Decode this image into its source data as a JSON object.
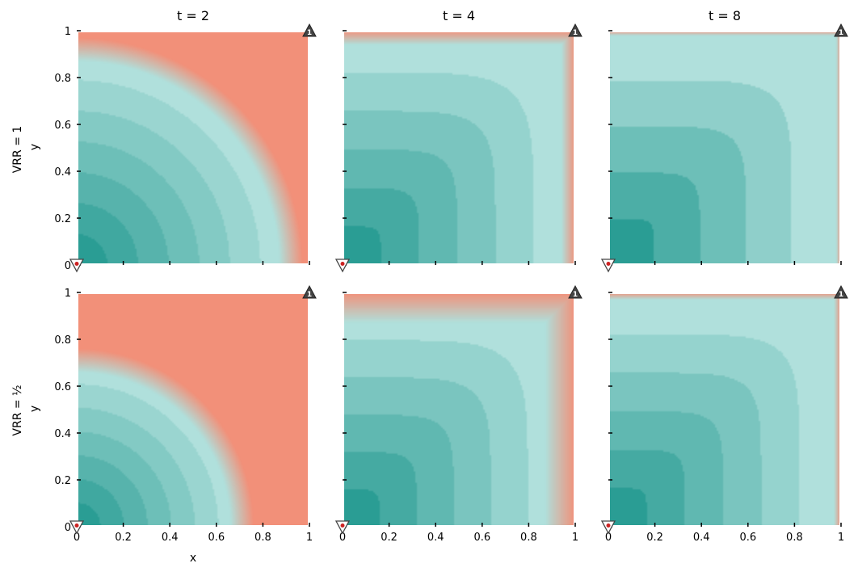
{
  "chart_data": {
    "type": "heatmap",
    "grid": false,
    "colors": {
      "teal_dark": "#2a9d94",
      "teal_light": "#b0e0dc",
      "salmon": "#f29079",
      "marker_dark": "#444444",
      "marker_red": "#cc2222"
    },
    "columns": [
      {
        "title": "t = 2",
        "t": 2
      },
      {
        "title": "t = 4",
        "t": 4
      },
      {
        "title": "t = 8",
        "t": 8
      }
    ],
    "rows": [
      {
        "label": "VRR = 1",
        "vrr": 1
      },
      {
        "label": "VRR = ½",
        "vrr": 0.5
      }
    ],
    "xlabel": "x",
    "ylabel": "y",
    "xlim": [
      0,
      1
    ],
    "ylim": [
      0,
      1
    ],
    "xticks": [
      "0",
      "0.2",
      "0.4",
      "0.6",
      "0.8",
      "1"
    ],
    "yticks": [
      "0",
      "0.2",
      "0.4",
      "0.6",
      "0.8",
      "1"
    ],
    "markers": [
      {
        "label": "0",
        "x": 0,
        "y": 0,
        "shape": "triangle-down"
      },
      {
        "label": "1",
        "x": 1,
        "y": 1,
        "shape": "triangle-up"
      }
    ],
    "panels": [
      {
        "row": 0,
        "col": 0,
        "model": "quarter",
        "front_radius": 0.92,
        "levels": 7,
        "blur": 0.05
      },
      {
        "row": 0,
        "col": 1,
        "model": "corner",
        "exp": 6,
        "levels": 6,
        "edge": 0.985,
        "stripe": 0.06
      },
      {
        "row": 0,
        "col": 2,
        "model": "corner",
        "exp": 7,
        "levels": 5,
        "edge": 0.985,
        "stripe": 0.02
      },
      {
        "row": 1,
        "col": 0,
        "model": "quarter",
        "front_radius": 0.71,
        "levels": 7,
        "blur": 0.05
      },
      {
        "row": 1,
        "col": 1,
        "model": "corner",
        "exp": 6,
        "levels": 6,
        "edge": 0.955,
        "stripe": 0.13
      },
      {
        "row": 1,
        "col": 2,
        "model": "corner",
        "exp": 7,
        "levels": 6,
        "edge": 0.985,
        "stripe": 0.03
      }
    ]
  }
}
